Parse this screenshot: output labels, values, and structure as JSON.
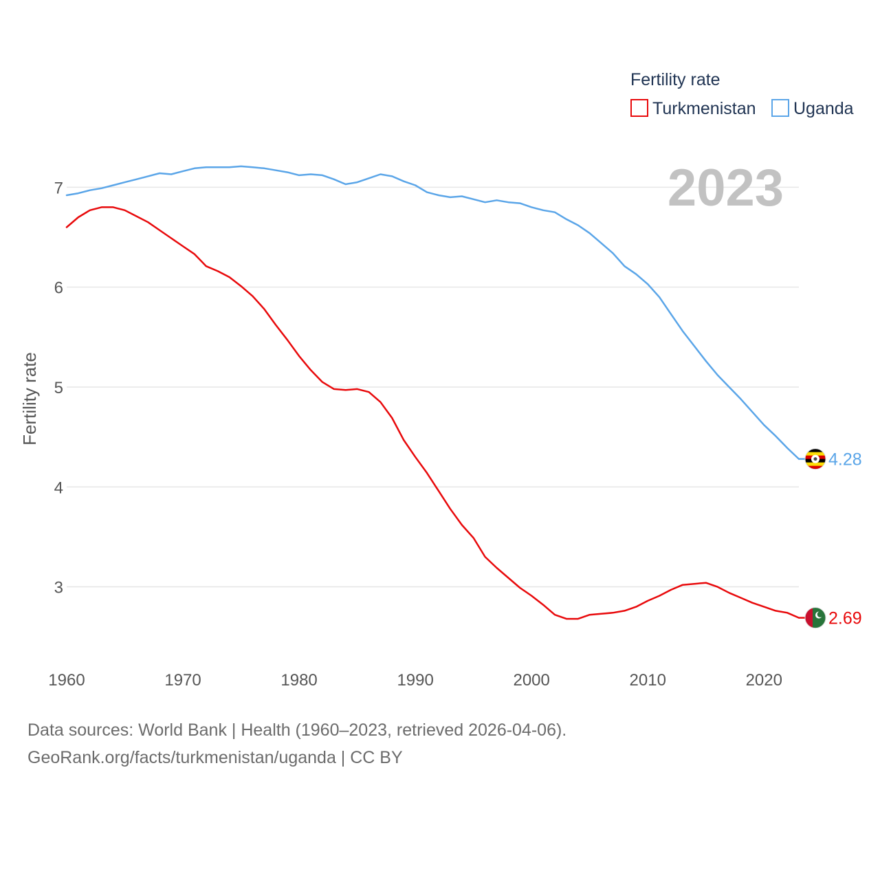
{
  "chart_data": {
    "type": "line",
    "title": "",
    "legend_title": "Fertility rate",
    "ylabel": "Fertility rate",
    "xlabel": "",
    "current_year_label": "2023",
    "xlim": [
      1960,
      2023
    ],
    "ylim": [
      2.35,
      7.45
    ],
    "x_ticks": [
      1960,
      1970,
      1980,
      1990,
      2000,
      2010,
      2020
    ],
    "y_ticks": [
      3,
      4,
      5,
      6,
      7
    ],
    "x": [
      1960,
      1961,
      1962,
      1963,
      1964,
      1965,
      1966,
      1967,
      1968,
      1969,
      1970,
      1971,
      1972,
      1973,
      1974,
      1975,
      1976,
      1977,
      1978,
      1979,
      1980,
      1981,
      1982,
      1983,
      1984,
      1985,
      1986,
      1987,
      1988,
      1989,
      1990,
      1991,
      1992,
      1993,
      1994,
      1995,
      1996,
      1997,
      1998,
      1999,
      2000,
      2001,
      2002,
      2003,
      2004,
      2005,
      2006,
      2007,
      2008,
      2009,
      2010,
      2011,
      2012,
      2013,
      2014,
      2015,
      2016,
      2017,
      2018,
      2019,
      2020,
      2021,
      2022,
      2023
    ],
    "series": [
      {
        "name": "Turkmenistan",
        "color": "#e8090b",
        "end_label": "2.69",
        "flag": "turkmenistan-flag",
        "values": [
          6.6,
          6.7,
          6.77,
          6.8,
          6.8,
          6.77,
          6.71,
          6.65,
          6.57,
          6.49,
          6.41,
          6.33,
          6.21,
          6.16,
          6.1,
          6.01,
          5.91,
          5.78,
          5.62,
          5.47,
          5.31,
          5.17,
          5.05,
          4.98,
          4.97,
          4.98,
          4.95,
          4.85,
          4.69,
          4.47,
          4.3,
          4.14,
          3.96,
          3.78,
          3.62,
          3.49,
          3.3,
          3.19,
          3.09,
          2.99,
          2.91,
          2.82,
          2.72,
          2.68,
          2.68,
          2.72,
          2.73,
          2.74,
          2.76,
          2.8,
          2.86,
          2.91,
          2.97,
          3.02,
          3.03,
          3.04,
          3.0,
          2.94,
          2.89,
          2.84,
          2.8,
          2.76,
          2.74,
          2.69
        ]
      },
      {
        "name": "Uganda",
        "color": "#5aa5e8",
        "end_label": "4.28",
        "flag": "uganda-flag",
        "values": [
          6.92,
          6.94,
          6.97,
          6.99,
          7.02,
          7.05,
          7.08,
          7.11,
          7.14,
          7.13,
          7.16,
          7.19,
          7.2,
          7.2,
          7.2,
          7.21,
          7.2,
          7.19,
          7.17,
          7.15,
          7.12,
          7.13,
          7.12,
          7.08,
          7.03,
          7.05,
          7.09,
          7.13,
          7.11,
          7.06,
          7.02,
          6.95,
          6.92,
          6.9,
          6.91,
          6.88,
          6.85,
          6.87,
          6.85,
          6.84,
          6.8,
          6.77,
          6.75,
          6.68,
          6.62,
          6.54,
          6.44,
          6.34,
          6.21,
          6.13,
          6.03,
          5.9,
          5.73,
          5.56,
          5.41,
          5.26,
          5.12,
          5.0,
          4.88,
          4.75,
          4.62,
          4.51,
          4.39,
          4.28
        ]
      }
    ]
  },
  "footer": {
    "sources_line": "Data sources: World Bank | Health (1960–2023, retrieved 2026-04-06).",
    "credit_line": "GeoRank.org/facts/turkmenistan/uganda | CC BY"
  }
}
